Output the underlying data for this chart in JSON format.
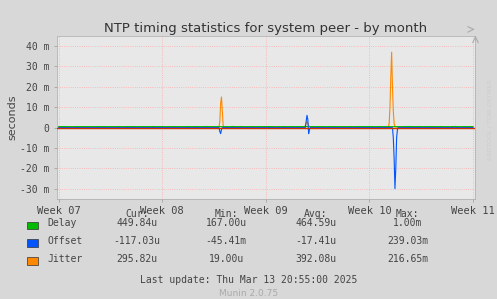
{
  "title": "NTP timing statistics for system peer - by month",
  "ylabel": "seconds",
  "background_color": "#d8d8d8",
  "plot_bg_color": "#e8e8e8",
  "grid_color": "#ffaaaa",
  "ylim": [
    -0.035,
    0.045
  ],
  "yticks": [
    -0.03,
    -0.02,
    -0.01,
    0.0,
    0.01,
    0.02,
    0.03,
    0.04
  ],
  "ytick_labels": [
    "-30 m",
    "-20 m",
    "-10 m",
    "0",
    "10 m",
    "20 m",
    "30 m",
    "40 m"
  ],
  "xtick_labels": [
    "Week 07",
    "Week 08",
    "Week 09",
    "Week 10",
    "Week 11"
  ],
  "num_points": 500,
  "delay_color": "#00bb00",
  "offset_color": "#0055ff",
  "jitter_color": "#ff8800",
  "zeroline_color": "#cc3300",
  "legend_items": [
    {
      "label": "Delay",
      "color": "#00bb00"
    },
    {
      "label": "Offset",
      "color": "#0055ff"
    },
    {
      "label": "Jitter",
      "color": "#ff8800"
    }
  ],
  "table_headers": [
    "Cur:",
    "Min:",
    "Avg:",
    "Max:"
  ],
  "table_data": [
    [
      "449.84u",
      "167.00u",
      "464.59u",
      "1.00m"
    ],
    [
      "-117.03u",
      "-45.41m",
      "-17.41u",
      "239.03m"
    ],
    [
      "295.82u",
      "19.00u",
      "392.08u",
      "216.65m"
    ]
  ],
  "last_update": "Last update: Thu Mar 13 20:55:00 2025",
  "munin_version": "Munin 2.0.75",
  "watermark": "RRDTOOL / TOBI OETIKER"
}
